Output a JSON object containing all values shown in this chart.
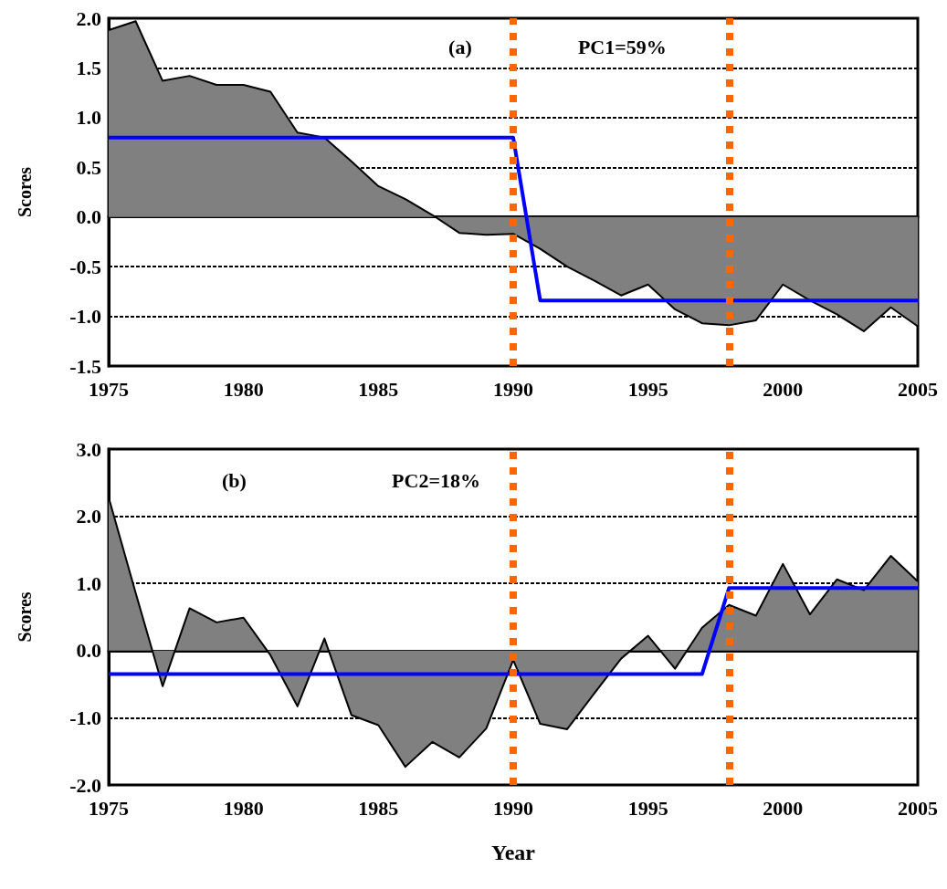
{
  "chart_data": [
    {
      "type": "area",
      "ylabel": "Scores",
      "annotations": [
        "(a)",
        "PC1=59%"
      ],
      "x": [
        1975,
        1976,
        1977,
        1978,
        1979,
        1980,
        1981,
        1982,
        1983,
        1984,
        1985,
        1986,
        1987,
        1988,
        1989,
        1990,
        1991,
        1992,
        1993,
        1994,
        1995,
        1996,
        1997,
        1998,
        1999,
        2000,
        2001,
        2002,
        2003,
        2004,
        2005
      ],
      "series": [
        {
          "color": "#808080",
          "values": [
            1.88,
            1.97,
            1.37,
            1.42,
            1.33,
            1.33,
            1.26,
            0.85,
            0.8,
            0.56,
            0.31,
            0.18,
            0.02,
            -0.16,
            -0.18,
            -0.17,
            -0.32,
            -0.5,
            -0.64,
            -0.79,
            -0.68,
            -0.93,
            -1.07,
            -1.09,
            -1.04,
            -0.68,
            -0.84,
            -0.98,
            -1.15,
            -0.91,
            -1.1
          ]
        },
        {
          "type": "line",
          "color": "#0000ff",
          "values": [
            0.8,
            0.8,
            0.8,
            0.8,
            0.8,
            0.8,
            0.8,
            0.8,
            0.8,
            0.8,
            0.8,
            0.8,
            0.8,
            0.8,
            0.8,
            0.8,
            -0.84,
            -0.84,
            -0.84,
            -0.84,
            -0.84,
            -0.84,
            -0.84,
            -0.84,
            -0.84,
            -0.84,
            -0.84,
            -0.84,
            -0.84,
            -0.84,
            -0.84
          ]
        }
      ],
      "xlim": [
        1975,
        2005
      ],
      "xticks": [
        1975,
        1980,
        1985,
        1990,
        1995,
        2000,
        2005
      ],
      "ylim": [
        -1.5,
        2.0
      ],
      "yticks": [
        {
          "value": -1.5,
          "label": "-1.5"
        },
        {
          "value": -1.0,
          "label": "-1.0"
        },
        {
          "value": -0.5,
          "label": "-0.5"
        },
        {
          "value": 0,
          "label": "0.0"
        },
        {
          "value": 0.5,
          "label": "0.5"
        },
        {
          "value": 1.0,
          "label": "1.0"
        },
        {
          "value": 1.5,
          "label": "1.5"
        },
        {
          "value": 2.0,
          "label": "2.0"
        }
      ],
      "ref_lines": [
        {
          "axis": "x",
          "value": 1990,
          "color": "#ff6600",
          "line_style": "dotted"
        },
        {
          "axis": "x",
          "value": 1998,
          "color": "#ff6600",
          "line_style": "dotted"
        }
      ],
      "grid": "y",
      "marker": "none"
    },
    {
      "type": "area",
      "xlabel": "Year",
      "ylabel": "Scores",
      "annotations": [
        "(b)",
        "PC2=18%"
      ],
      "x": [
        1975,
        1976,
        1977,
        1978,
        1979,
        1980,
        1981,
        1982,
        1983,
        1984,
        1985,
        1986,
        1987,
        1988,
        1989,
        1990,
        1991,
        1992,
        1993,
        1994,
        1995,
        1996,
        1997,
        1998,
        1999,
        2000,
        2001,
        2002,
        2003,
        2004,
        2005
      ],
      "series": [
        {
          "color": "#808080",
          "values": [
            2.28,
            0.86,
            -0.53,
            0.63,
            0.42,
            0.49,
            -0.07,
            -0.83,
            0.18,
            -0.96,
            -1.11,
            -1.73,
            -1.36,
            -1.59,
            -1.16,
            -0.14,
            -1.09,
            -1.17,
            -0.64,
            -0.12,
            0.22,
            -0.27,
            0.34,
            0.68,
            0.52,
            1.29,
            0.54,
            1.06,
            0.9,
            1.41,
            1.03
          ]
        },
        {
          "type": "line",
          "color": "#0000ff",
          "values": [
            -0.35,
            -0.35,
            -0.35,
            -0.35,
            -0.35,
            -0.35,
            -0.35,
            -0.35,
            -0.35,
            -0.35,
            -0.35,
            -0.35,
            -0.35,
            -0.35,
            -0.35,
            -0.35,
            -0.35,
            -0.35,
            -0.35,
            -0.35,
            -0.35,
            -0.35,
            -0.35,
            0.93,
            0.93,
            0.93,
            0.93,
            0.93,
            0.93,
            0.93,
            0.93
          ]
        }
      ],
      "xlim": [
        1975,
        2005
      ],
      "xticks": [
        1975,
        1980,
        1985,
        1990,
        1995,
        2000,
        2005
      ],
      "ylim": [
        -2.0,
        3.0
      ],
      "yticks": [
        {
          "value": -2.0,
          "label": "-2.0"
        },
        {
          "value": -1.0,
          "label": "-1.0"
        },
        {
          "value": 0,
          "label": "0.0"
        },
        {
          "value": 1.0,
          "label": "1.0"
        },
        {
          "value": 2.0,
          "label": "2.0"
        },
        {
          "value": 3.0,
          "label": "3.0"
        }
      ],
      "ref_lines": [
        {
          "axis": "x",
          "value": 1990,
          "color": "#ff6600",
          "line_style": "dotted"
        },
        {
          "axis": "x",
          "value": 1998,
          "color": "#ff6600",
          "line_style": "dotted"
        }
      ],
      "grid": "y",
      "marker": "none"
    }
  ]
}
